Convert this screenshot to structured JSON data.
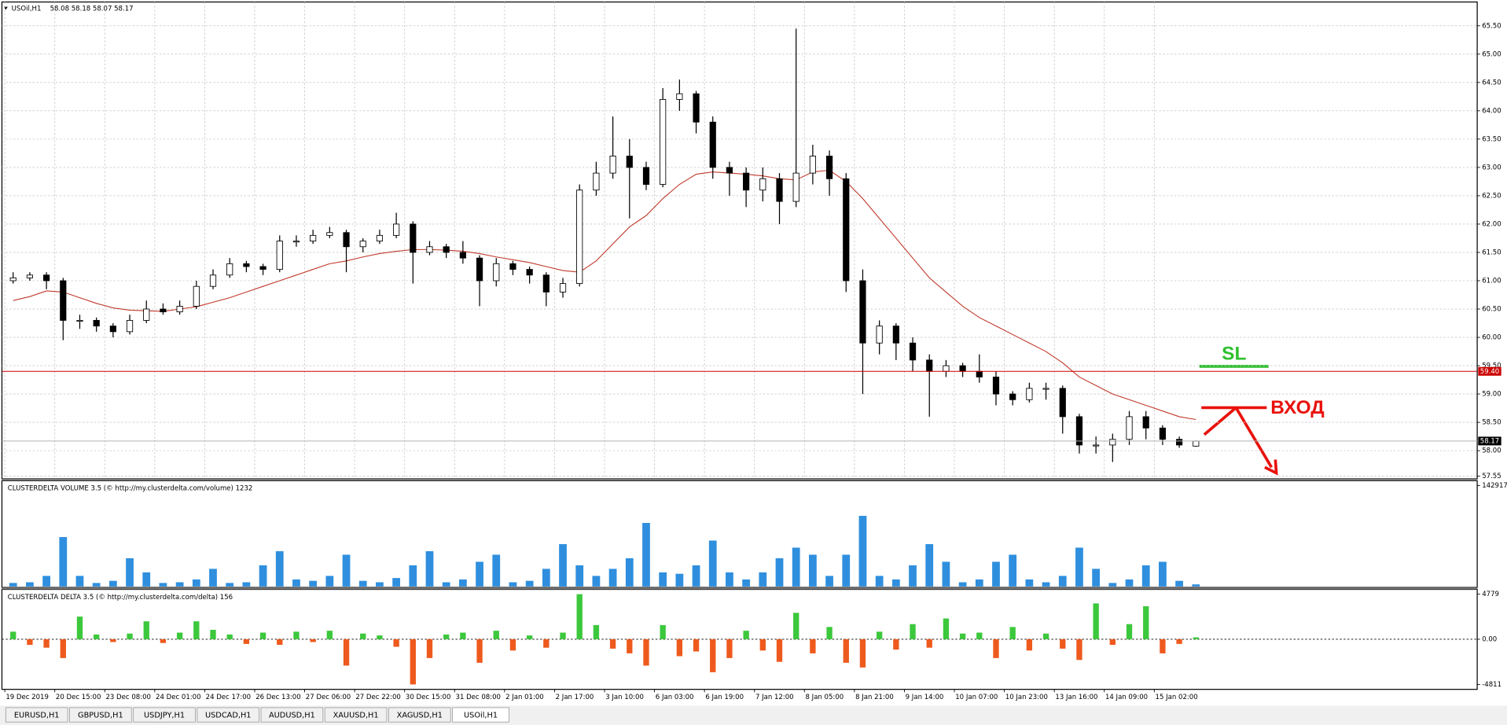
{
  "chart_data": [
    {
      "type": "candlestick",
      "title": "USOil,H1",
      "subtitle": "58.08 58.18 58.07 58.17",
      "categories": [
        "19 Dec 2019",
        null,
        null,
        "20 Dec 15:00",
        null,
        null,
        "23 Dec 08:00",
        null,
        null,
        "24 Dec 01:00",
        null,
        null,
        "24 Dec 17:00",
        null,
        null,
        "26 Dec 13:00",
        null,
        null,
        "27 Dec 06:00",
        null,
        null,
        "27 Dec 22:00",
        null,
        null,
        "30 Dec 15:00",
        null,
        null,
        "31 Dec 08:00",
        null,
        null,
        "2 Jan 01:00",
        null,
        null,
        "2 Jan 17:00",
        null,
        null,
        "3 Jan 10:00",
        null,
        null,
        "6 Jan 03:00",
        null,
        null,
        "6 Jan 19:00",
        null,
        null,
        "7 Jan 12:00",
        null,
        null,
        "8 Jan 05:00",
        null,
        null,
        "8 Jan 21:00",
        null,
        null,
        "9 Jan 14:00",
        null,
        null,
        "10 Jan 07:00",
        null,
        null,
        "10 Jan 23:00",
        null,
        null,
        "13 Jan 16:00",
        null,
        null,
        "14 Jan 09:00",
        null,
        null,
        "15 Jan 02:00",
        null,
        null
      ],
      "open": [
        61.0,
        61.05,
        61.1,
        61.0,
        60.3,
        60.3,
        60.2,
        60.1,
        60.3,
        60.5,
        60.45,
        60.55,
        60.9,
        61.1,
        61.3,
        61.25,
        61.2,
        61.7,
        61.7,
        61.8,
        61.85,
        61.6,
        61.7,
        61.8,
        62.0,
        61.5,
        61.6,
        61.5,
        61.4,
        61.0,
        61.3,
        61.2,
        61.1,
        60.8,
        60.95,
        62.6,
        62.9,
        63.2,
        63.0,
        62.7,
        64.2,
        64.3,
        63.8,
        63.0,
        62.9,
        62.6,
        62.8,
        62.4,
        62.9,
        63.2,
        62.8,
        61.0,
        59.9,
        60.2,
        59.9,
        59.6,
        59.4,
        59.5,
        59.4,
        59.3,
        59.0,
        58.9,
        59.1,
        59.1,
        58.6,
        58.1,
        58.1,
        58.2,
        58.6,
        58.4,
        58.2,
        58.08
      ],
      "high": [
        61.15,
        61.15,
        61.15,
        61.05,
        60.4,
        60.35,
        60.25,
        60.4,
        60.65,
        60.6,
        60.65,
        61.0,
        61.2,
        61.4,
        61.35,
        61.3,
        61.8,
        61.8,
        61.9,
        61.95,
        61.9,
        61.75,
        61.9,
        62.2,
        62.05,
        61.7,
        61.65,
        61.7,
        61.45,
        61.4,
        61.35,
        61.25,
        61.15,
        61.05,
        62.7,
        63.1,
        63.9,
        63.5,
        63.1,
        64.4,
        64.55,
        64.35,
        63.9,
        63.1,
        63.0,
        63.0,
        62.9,
        65.45,
        63.4,
        63.3,
        62.9,
        61.2,
        60.3,
        60.25,
        60.0,
        59.7,
        59.6,
        59.55,
        59.7,
        59.4,
        59.05,
        59.2,
        59.2,
        59.15,
        58.65,
        58.25,
        58.3,
        58.7,
        58.7,
        58.45,
        58.25,
        58.18
      ],
      "low": [
        60.95,
        61.0,
        60.85,
        59.95,
        60.15,
        60.1,
        60.0,
        60.05,
        60.25,
        60.4,
        60.4,
        60.5,
        60.85,
        61.05,
        61.15,
        61.1,
        61.15,
        61.6,
        61.65,
        61.75,
        61.15,
        61.5,
        61.65,
        61.75,
        60.95,
        61.45,
        61.4,
        61.3,
        60.55,
        60.9,
        61.1,
        60.95,
        60.55,
        60.7,
        60.9,
        62.5,
        62.8,
        62.1,
        62.6,
        62.65,
        64.0,
        63.6,
        62.8,
        62.5,
        62.3,
        62.4,
        62.0,
        62.3,
        62.7,
        62.5,
        60.8,
        59.0,
        59.7,
        59.6,
        59.4,
        58.6,
        59.3,
        59.3,
        59.2,
        58.8,
        58.8,
        58.85,
        58.9,
        58.3,
        57.95,
        57.95,
        57.8,
        58.1,
        58.2,
        58.1,
        58.05,
        58.07
      ],
      "close": [
        61.05,
        61.1,
        61.0,
        60.3,
        60.3,
        60.2,
        60.1,
        60.3,
        60.5,
        60.45,
        60.55,
        60.9,
        61.1,
        61.3,
        61.25,
        61.2,
        61.7,
        61.7,
        61.8,
        61.85,
        61.6,
        61.7,
        61.8,
        62.0,
        61.5,
        61.6,
        61.5,
        61.4,
        61.0,
        61.3,
        61.2,
        61.1,
        60.8,
        60.95,
        62.6,
        62.9,
        63.2,
        63.0,
        62.7,
        64.2,
        64.3,
        63.8,
        63.0,
        62.9,
        62.6,
        62.8,
        62.4,
        62.9,
        63.2,
        62.8,
        61.0,
        59.9,
        60.2,
        59.9,
        59.6,
        59.4,
        59.5,
        59.4,
        59.3,
        59.0,
        58.9,
        59.1,
        59.1,
        58.6,
        58.1,
        58.1,
        58.2,
        58.6,
        58.4,
        58.2,
        58.1,
        58.17
      ],
      "up_color": "#ffffff",
      "down_color": "#000000",
      "wick_color": "#000000",
      "overlay_line": {
        "color": "#c0392b",
        "values": [
          60.65,
          60.72,
          60.82,
          60.8,
          60.7,
          60.6,
          60.52,
          60.48,
          60.47,
          60.46,
          60.5,
          60.54,
          60.62,
          60.7,
          60.8,
          60.9,
          61.0,
          61.1,
          61.2,
          61.3,
          61.35,
          61.42,
          61.48,
          61.52,
          61.55,
          61.55,
          61.54,
          61.52,
          61.48,
          61.42,
          61.37,
          61.32,
          61.25,
          61.18,
          61.15,
          61.35,
          61.65,
          61.95,
          62.15,
          62.45,
          62.7,
          62.88,
          62.92,
          62.9,
          62.88,
          62.85,
          62.8,
          62.78,
          62.92,
          62.95,
          62.75,
          62.45,
          62.1,
          61.75,
          61.4,
          61.05,
          60.8,
          60.55,
          60.35,
          60.2,
          60.05,
          59.9,
          59.75,
          59.55,
          59.3,
          59.15,
          59.0,
          58.9,
          58.8,
          58.7,
          58.6,
          58.55
        ]
      },
      "hlines": [
        {
          "value": 59.4,
          "label": "59.40",
          "color": "#cc0000"
        },
        {
          "value": 58.17,
          "label": "58.17",
          "color": "#b0b0b0"
        }
      ],
      "annotations": [
        {
          "text": "SL",
          "color": "#2ec02e"
        },
        {
          "text": "ВХОД",
          "color": "#e8120c"
        }
      ],
      "ylim": [
        57.52,
        65.92
      ],
      "yticks": [
        {
          "value": 65.5,
          "label": "65.50"
        },
        {
          "value": 65,
          "label": "65.00"
        },
        {
          "value": 64.5,
          "label": "64.50"
        },
        {
          "value": 64,
          "label": "64.00"
        },
        {
          "value": 63.5,
          "label": "63.50"
        },
        {
          "value": 63,
          "label": "63.00"
        },
        {
          "value": 62.5,
          "label": "62.50"
        },
        {
          "value": 62,
          "label": "62.00"
        },
        {
          "value": 61.5,
          "label": "61.50"
        },
        {
          "value": 61,
          "label": "61.00"
        },
        {
          "value": 60.5,
          "label": "60.50"
        },
        {
          "value": 60,
          "label": "60.00"
        },
        {
          "value": 59.5,
          "label": "59.50"
        },
        {
          "value": 59,
          "label": "59.00"
        },
        {
          "value": 58.5,
          "label": "58.50"
        },
        {
          "value": 58,
          "label": "58.00"
        },
        57.55
      ],
      "grid": true
    },
    {
      "type": "bar",
      "title": "CLUSTERDELTA VOLUME 3.5 (© http://my.clusterdelta.com/volume) 1232",
      "values": [
        5000,
        6000,
        15000,
        70000,
        15000,
        5000,
        8000,
        40000,
        20000,
        5000,
        6000,
        10000,
        25000,
        5000,
        6000,
        30000,
        50000,
        10000,
        8000,
        15000,
        45000,
        8000,
        6000,
        12000,
        30000,
        50000,
        6000,
        10000,
        35000,
        45000,
        6000,
        8000,
        25000,
        60000,
        30000,
        15000,
        25000,
        40000,
        90000,
        20000,
        18000,
        30000,
        65000,
        20000,
        10000,
        20000,
        40000,
        55000,
        45000,
        15000,
        45000,
        100000,
        15000,
        10000,
        30000,
        60000,
        35000,
        6000,
        10000,
        35000,
        45000,
        10000,
        6000,
        15000,
        55000,
        25000,
        5000,
        10000,
        30000,
        35000,
        8000,
        3000
      ],
      "color": "#2f8fde",
      "ylim": [
        0,
        142917
      ],
      "yticks": [
        142917
      ],
      "grid": false
    },
    {
      "type": "delta",
      "title": "CLUSTERDELTA DELTA 3.5 (© http://my.clusterdelta.com/delta) 156",
      "values": [
        800,
        -600,
        -900,
        -2000,
        2400,
        500,
        -300,
        600,
        1900,
        -400,
        700,
        1900,
        1000,
        500,
        -500,
        700,
        -600,
        800,
        -300,
        900,
        -2800,
        600,
        400,
        -800,
        -4800,
        -2000,
        500,
        700,
        -2500,
        900,
        -1200,
        400,
        -900,
        700,
        4779,
        1500,
        -1000,
        -1500,
        -2800,
        1500,
        -1800,
        -1300,
        -3500,
        -2000,
        900,
        -1200,
        -2400,
        2800,
        -1500,
        1300,
        -2500,
        -3000,
        800,
        -1100,
        1600,
        -900,
        2200,
        600,
        700,
        -2000,
        1300,
        -1200,
        600,
        -1000,
        -2200,
        3800,
        -600,
        1600,
        3500,
        -1500,
        -500,
        200
      ],
      "positive_color": "#3cc83c",
      "negative_color": "#ee5a1e",
      "ylim": [
        -4811,
        4779
      ],
      "yticks": [
        4779,
        {
          "value": 0,
          "label": "0.00"
        },
        -4811
      ],
      "grid": false,
      "zero_line": true
    }
  ],
  "tabs": [
    "EURUSD,H1",
    "GBPUSD,H1",
    "USDJPY,H1",
    "USDCAD,H1",
    "AUDUSD,H1",
    "XAUUSD,H1",
    "XAGUSD,H1",
    "USOil,H1"
  ],
  "active_tab": 7
}
